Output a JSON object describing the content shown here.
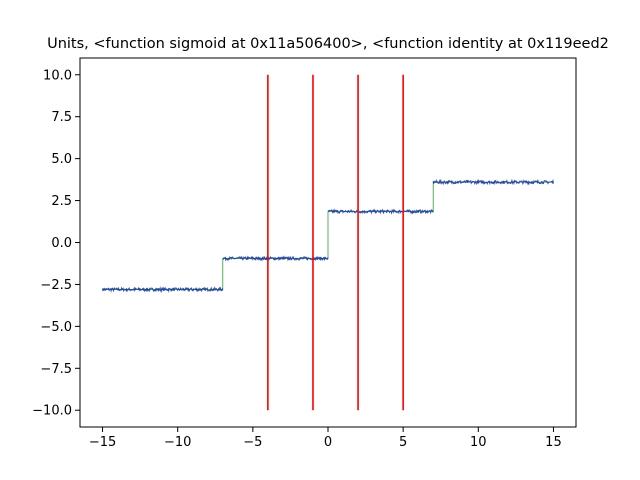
{
  "chart_data": {
    "type": "line",
    "title": "Units, <function sigmoid at 0x11a506400>, <function identity at 0x119eed2",
    "xlabel": "",
    "ylabel": "",
    "xlim": [
      -16.5,
      16.5
    ],
    "ylim": [
      -11.0,
      11.0
    ],
    "grid": false,
    "x_ticks": [
      -15,
      -10,
      -5,
      0,
      5,
      10,
      15
    ],
    "x_tick_labels": [
      "−15",
      "−10",
      "−5",
      "0",
      "5",
      "10",
      "15"
    ],
    "y_ticks": [
      -10.0,
      -7.5,
      -5.0,
      -2.5,
      0.0,
      2.5,
      5.0,
      7.5,
      10.0
    ],
    "y_tick_labels": [
      "−10.0",
      "−7.5",
      "−5.0",
      "−2.5",
      "0.0",
      "2.5",
      "5.0",
      "7.5",
      "10.0"
    ],
    "vertical_lines": {
      "color": "#ff0000",
      "x": [
        -4,
        -1,
        2,
        5
      ],
      "y_range": [
        -10,
        10
      ]
    },
    "series": [
      {
        "color": "#2ca02c",
        "style": "thin-line",
        "x": [
          -15,
          -7,
          -7,
          0,
          0,
          7,
          7,
          15
        ],
        "y": [
          -2.8,
          -2.8,
          -0.95,
          -0.95,
          1.85,
          1.85,
          3.6,
          3.6
        ]
      },
      {
        "color": "#1f3fa0",
        "style": "noisy-points",
        "x": [
          -15,
          -7,
          -7,
          0,
          0,
          7,
          7,
          15
        ],
        "y": [
          -2.8,
          -2.8,
          -0.95,
          -0.95,
          1.85,
          1.85,
          3.6,
          3.6
        ]
      }
    ]
  }
}
